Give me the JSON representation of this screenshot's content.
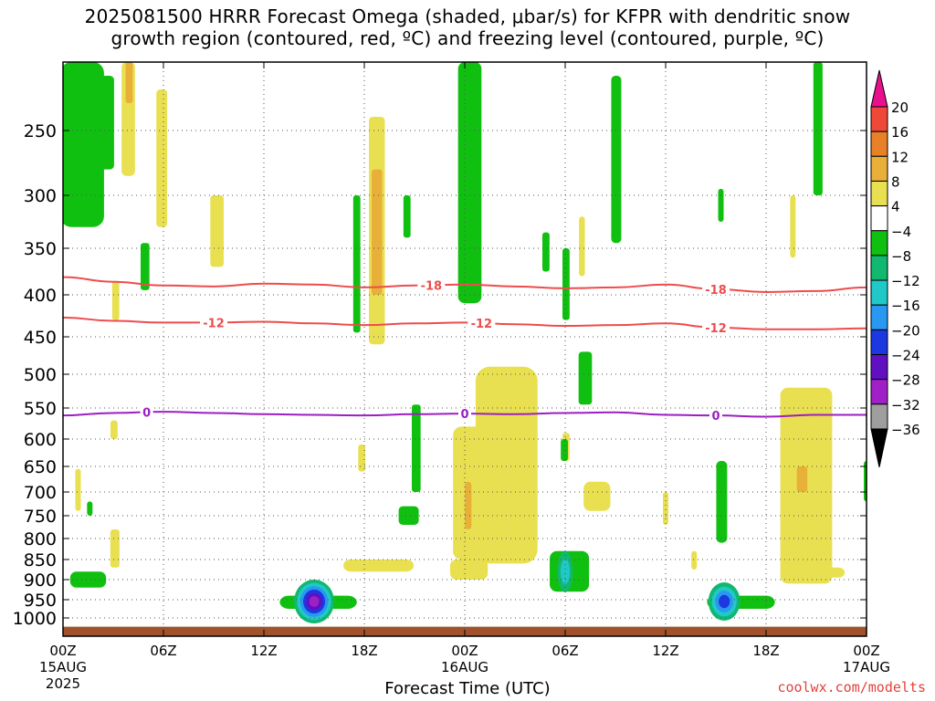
{
  "title_line1": "2025081500 HRRR Forecast Omega (shaded, μbar/s) for KFPR with dendritic snow",
  "title_line2": "growth region (contoured, red, ºC) and freezing level (contoured, purple, ºC)",
  "credit": "coolwx.com/modelts",
  "chart_data": {
    "type": "heatmap",
    "xlabel": "Forecast Time (UTC)",
    "xlim_hours": [
      0,
      48
    ],
    "x_ticks": [
      {
        "h": 0,
        "label": "00Z",
        "sub1": "15AUG",
        "sub2": "2025"
      },
      {
        "h": 6,
        "label": "06Z"
      },
      {
        "h": 12,
        "label": "12Z"
      },
      {
        "h": 18,
        "label": "18Z"
      },
      {
        "h": 24,
        "label": "00Z",
        "sub1": "16AUG"
      },
      {
        "h": 30,
        "label": "06Z"
      },
      {
        "h": 36,
        "label": "12Z"
      },
      {
        "h": 42,
        "label": "18Z"
      },
      {
        "h": 48,
        "label": "00Z",
        "sub1": "17AUG"
      }
    ],
    "ylabel": "",
    "y_axis": "pressure (hPa), inverted",
    "ylim_hpa": [
      1025,
      200
    ],
    "y_ticks": [
      250,
      300,
      350,
      400,
      450,
      500,
      550,
      600,
      650,
      700,
      750,
      800,
      850,
      900,
      950,
      1000
    ],
    "grid": "dotted",
    "colorbar": {
      "position": "right",
      "levels": [
        -36,
        -32,
        -28,
        -24,
        -20,
        -16,
        -12,
        -8,
        -4,
        4,
        8,
        12,
        16,
        20
      ],
      "labels": [
        "20",
        "16",
        "12",
        "8",
        "4",
        "−4",
        "−8",
        "−12",
        "−16",
        "−20",
        "−24",
        "−28",
        "−32",
        "−36"
      ],
      "colors": [
        "#000000",
        "#9e9e9e",
        "#a020c8",
        "#6010c0",
        "#1c38e0",
        "#2898f0",
        "#20c8c8",
        "#10b870",
        "#10c010",
        "#ffffff",
        "#e8e050",
        "#e8b038",
        "#e88028",
        "#f04838",
        "#e8108c"
      ]
    },
    "contours": [
      {
        "name": "-18",
        "color": "#ee4c4c",
        "units": "ºC",
        "p_hpa": [
          381,
          386,
          390,
          391,
          388,
          389,
          392,
          390,
          389,
          391,
          393,
          392,
          389,
          394,
          397,
          396,
          392
        ],
        "label_hours": [
          22,
          39
        ]
      },
      {
        "name": "-12",
        "color": "#ee4c4c",
        "units": "ºC",
        "p_hpa": [
          427,
          431,
          433,
          433,
          432,
          434,
          436,
          434,
          433,
          435,
          437,
          436,
          434,
          439,
          441,
          441,
          440
        ],
        "label_hours": [
          9,
          25,
          39
        ]
      },
      {
        "name": "0",
        "color": "#9b1fc2",
        "units": "ºC",
        "p_hpa": [
          562,
          558,
          556,
          558,
          560,
          561,
          562,
          560,
          559,
          560,
          558,
          557,
          561,
          562,
          564,
          561,
          561
        ],
        "label_hours": [
          5,
          24,
          39
        ]
      }
    ],
    "omega_regions": [
      {
        "t": [
          0.5,
          1.8,
          3.0
        ],
        "p": [
          200,
          330,
          310
        ],
        "w": 1.3,
        "v": -6
      },
      {
        "t": [
          2.4,
          2.8
        ],
        "p": [
          210,
          280
        ],
        "w": 0.5,
        "v": -6
      },
      {
        "t": [
          3.8,
          4.0
        ],
        "p": [
          200,
          285
        ],
        "w": 0.6,
        "v": 6
      },
      {
        "t": [
          3.9,
          4.0
        ],
        "p": [
          200,
          230
        ],
        "w": 0.25,
        "v": 10
      },
      {
        "t": [
          5.8,
          6.0
        ],
        "p": [
          220,
          330
        ],
        "w": 0.45,
        "v": 6
      },
      {
        "t": [
          3.1,
          3.2
        ],
        "p": [
          385,
          430
        ],
        "w": 0.3,
        "v": 6
      },
      {
        "t": [
          4.8,
          5.0
        ],
        "p": [
          345,
          395
        ],
        "w": 0.3,
        "v": -6
      },
      {
        "t": [
          9.0,
          9.4
        ],
        "p": [
          300,
          370
        ],
        "w": 0.4,
        "v": 6
      },
      {
        "t": [
          18.5,
          19.0
        ],
        "p": [
          240,
          460
        ],
        "w": 0.45,
        "v": 6
      },
      {
        "t": [
          18.6,
          18.9
        ],
        "p": [
          280,
          400
        ],
        "w": 0.15,
        "v": 10
      },
      {
        "t": [
          17.5,
          17.6
        ],
        "p": [
          300,
          445
        ],
        "w": 0.2,
        "v": -6
      },
      {
        "t": [
          20.5,
          20.6
        ],
        "p": [
          300,
          340
        ],
        "w": 0.15,
        "v": -6
      },
      {
        "t": [
          24.0,
          24.6
        ],
        "p": [
          200,
          410
        ],
        "w": 0.8,
        "v": -6
      },
      {
        "t": [
          28.8,
          28.9
        ],
        "p": [
          335,
          375
        ],
        "w": 0.25,
        "v": -6
      },
      {
        "t": [
          30.0,
          30.1
        ],
        "p": [
          350,
          430
        ],
        "w": 0.25,
        "v": -6
      },
      {
        "t": [
          31.0,
          31.0
        ],
        "p": [
          320,
          380
        ],
        "w": 0.35,
        "v": 6
      },
      {
        "t": [
          33.0,
          33.1
        ],
        "p": [
          210,
          345
        ],
        "w": 0.5,
        "v": -6
      },
      {
        "t": [
          39.3,
          39.3
        ],
        "p": [
          295,
          325
        ],
        "w": 0.15,
        "v": -6
      },
      {
        "t": [
          43.6,
          43.6
        ],
        "p": [
          300,
          360
        ],
        "w": 0.2,
        "v": 6
      },
      {
        "t": [
          45.0,
          45.2
        ],
        "p": [
          200,
          300
        ],
        "w": 0.35,
        "v": -6
      },
      {
        "t": [
          31.0,
          31.4
        ],
        "p": [
          470,
          545
        ],
        "w": 0.4,
        "v": -6
      },
      {
        "t": [
          21.0,
          21.2
        ],
        "p": [
          545,
          700
        ],
        "w": 0.25,
        "v": -6
      },
      {
        "t": [
          25.5,
          27.5
        ],
        "p": [
          490,
          860
        ],
        "w": 1.7,
        "v": 6
      },
      {
        "t": [
          23.8,
          25.2
        ],
        "p": [
          580,
          850
        ],
        "w": 1.0,
        "v": 6
      },
      {
        "t": [
          24.2,
          24.2
        ],
        "p": [
          680,
          780
        ],
        "w": 0.4,
        "v": 10
      },
      {
        "t": [
          20.3,
          21.0
        ],
        "p": [
          730,
          770
        ],
        "w": 0.5,
        "v": -6
      },
      {
        "t": [
          31.5,
          32.3
        ],
        "p": [
          680,
          740
        ],
        "w": 0.8,
        "v": 6
      },
      {
        "t": [
          30.0,
          30.1
        ],
        "p": [
          590,
          640
        ],
        "w": 0.2,
        "v": 6
      },
      {
        "t": [
          43.3,
          45.5
        ],
        "p": [
          520,
          910
        ],
        "w": 0.9,
        "v": 6
      },
      {
        "t": [
          44.0,
          44.3
        ],
        "p": [
          650,
          700
        ],
        "w": 0.2,
        "v": 10
      },
      {
        "t": [
          48.0,
          48.0
        ],
        "p": [
          640,
          720
        ],
        "w": 0.3,
        "v": -6
      },
      {
        "t": [
          39.3,
          39.4
        ],
        "p": [
          640,
          810
        ],
        "w": 0.55,
        "v": -6
      },
      {
        "t": [
          36.0,
          36.0
        ],
        "p": [
          700,
          770
        ],
        "w": 0.15,
        "v": 6
      },
      {
        "t": [
          3.0,
          3.2
        ],
        "p": [
          780,
          870
        ],
        "w": 0.35,
        "v": 6
      },
      {
        "t": [
          0.9,
          0.9
        ],
        "p": [
          655,
          740
        ],
        "w": 0.25,
        "v": 6
      },
      {
        "t": [
          1.6,
          1.6
        ],
        "p": [
          720,
          750
        ],
        "w": 0.15,
        "v": -6
      },
      {
        "t": [
          3.0,
          3.1
        ],
        "p": [
          570,
          600
        ],
        "w": 0.15,
        "v": 6
      },
      {
        "t": [
          17.8,
          17.9
        ],
        "p": [
          610,
          660
        ],
        "w": 0.15,
        "v": 6
      },
      {
        "t": [
          29.9,
          30.0
        ],
        "p": [
          600,
          640
        ],
        "w": 0.15,
        "v": -6
      },
      {
        "t": [
          0.8,
          2.2
        ],
        "p": [
          880,
          920
        ],
        "w": 0.75,
        "v": -6
      },
      {
        "t": [
          17.2,
          20.5
        ],
        "p": [
          850,
          880
        ],
        "w": 0.9,
        "v": 6
      },
      {
        "t": [
          23.5,
          25.0
        ],
        "p": [
          850,
          900
        ],
        "w": 0.75,
        "v": 6
      },
      {
        "t": [
          44.0,
          46.3
        ],
        "p": [
          870,
          895
        ],
        "w": 0.8,
        "v": 6
      },
      {
        "t": [
          37.7,
          37.7
        ],
        "p": [
          830,
          875
        ],
        "w": 0.1,
        "v": 6
      },
      {
        "t": [
          13.5,
          17.0
        ],
        "p": [
          940,
          975
        ],
        "w": 1.1,
        "v": -6
      },
      {
        "t": [
          29.5,
          31.0
        ],
        "p": [
          830,
          930
        ],
        "w": 0.85,
        "v": -6
      },
      {
        "t": [
          39.0,
          42.0
        ],
        "p": [
          940,
          975
        ],
        "w": 1.05,
        "v": -6
      }
    ],
    "omega_cores": [
      {
        "t": 15.0,
        "p": 955,
        "w": 1.2,
        "h": 48,
        "levels": [
          -10,
          -14,
          -18,
          -22,
          -26,
          -30
        ]
      },
      {
        "t": 30.0,
        "p": 880,
        "w": 0.45,
        "h": 45,
        "levels": [
          -10,
          -14
        ]
      },
      {
        "t": 39.5,
        "p": 955,
        "w": 0.95,
        "h": 42,
        "levels": [
          -10,
          -14,
          -18,
          -22
        ]
      }
    ],
    "surface": {
      "p_hpa": 1012,
      "color": "#a0522d"
    }
  }
}
